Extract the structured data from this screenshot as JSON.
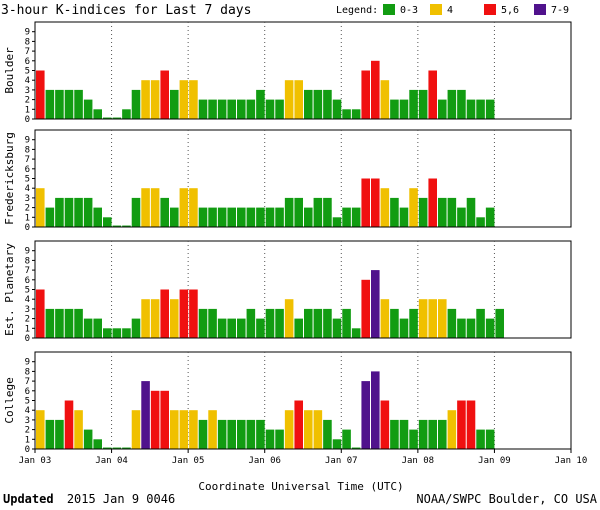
{
  "chart_data": {
    "type": "bar",
    "title": "3-hour K-indices for Last 7 days",
    "legend": {
      "label": "Legend:",
      "entries": [
        {
          "label": "0-3",
          "color": "#129c12"
        },
        {
          "label": "4",
          "color": "#f0c000"
        },
        {
          "label": "5,6",
          "color": "#f01010"
        },
        {
          "label": "7-9",
          "color": "#50128c"
        }
      ]
    },
    "xlabel": "Coordinate Universal Time (UTC)",
    "x_ticks": [
      "Jan 03",
      "Jan 04",
      "Jan 05",
      "Jan 06",
      "Jan 07",
      "Jan 08",
      "Jan 09",
      "Jan 10"
    ],
    "ylim": [
      0,
      9
    ],
    "y_ticks": [
      "0",
      "1",
      "2",
      "3",
      "4",
      "5",
      "6",
      "7",
      "8",
      "9"
    ],
    "panels": [
      {
        "name": "Boulder",
        "values": [
          5,
          3,
          3,
          3,
          3,
          2,
          1,
          0,
          0,
          1,
          3,
          4,
          4,
          5,
          3,
          4,
          4,
          2,
          2,
          2,
          2,
          2,
          2,
          3,
          2,
          2,
          4,
          4,
          3,
          3,
          3,
          2,
          1,
          1,
          5,
          6,
          4,
          2,
          2,
          3,
          3,
          5,
          2,
          3,
          3,
          2,
          2,
          2
        ]
      },
      {
        "name": "Fredericksburg",
        "values": [
          4,
          2,
          3,
          3,
          3,
          3,
          2,
          1,
          0,
          0,
          3,
          4,
          4,
          3,
          2,
          4,
          4,
          2,
          2,
          2,
          2,
          2,
          2,
          2,
          2,
          2,
          3,
          3,
          2,
          3,
          3,
          1,
          2,
          2,
          5,
          5,
          4,
          3,
          2,
          4,
          3,
          5,
          3,
          3,
          2,
          3,
          1,
          2
        ]
      },
      {
        "name": "Est. Planetary",
        "values": [
          5,
          3,
          3,
          3,
          3,
          2,
          2,
          1,
          1,
          1,
          2,
          4,
          4,
          5,
          4,
          5,
          5,
          3,
          3,
          2,
          2,
          2,
          3,
          2,
          3,
          3,
          4,
          2,
          3,
          3,
          3,
          2,
          3,
          1,
          6,
          7,
          4,
          3,
          2,
          3,
          4,
          4,
          4,
          3,
          2,
          2,
          3,
          2,
          3
        ]
      },
      {
        "name": "College",
        "values": [
          4,
          3,
          3,
          5,
          4,
          2,
          1,
          0,
          0,
          0,
          4,
          7,
          6,
          6,
          4,
          4,
          4,
          3,
          4,
          3,
          3,
          3,
          3,
          3,
          2,
          2,
          4,
          5,
          4,
          4,
          3,
          1,
          2,
          0,
          7,
          8,
          5,
          3,
          3,
          2,
          3,
          3,
          3,
          4,
          5,
          5,
          2,
          2
        ]
      }
    ]
  },
  "footer": {
    "updated_label": "Updated",
    "updated_time": "2015 Jan  9 0046",
    "source": "NOAA/SWPC Boulder, CO USA"
  }
}
